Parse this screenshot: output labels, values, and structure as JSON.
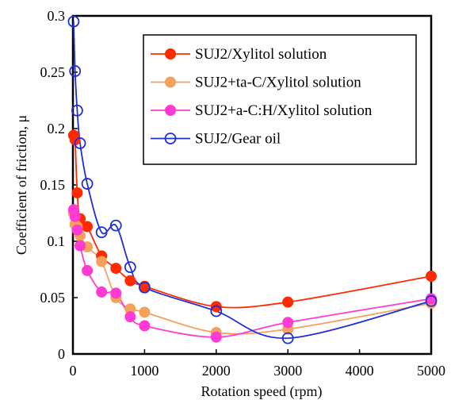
{
  "chart_data": {
    "type": "line",
    "xlabel": "Rotation speed (rpm)",
    "ylabel": "Coefficient of friction, μ",
    "xlim": [
      0,
      5000
    ],
    "ylim": [
      0,
      0.3
    ],
    "x_ticks": [
      0,
      1000,
      2000,
      3000,
      4000,
      5000
    ],
    "y_ticks": [
      0,
      0.05,
      0.1,
      0.15,
      0.2,
      0.25,
      0.3
    ],
    "x_tick_labels": [
      "0",
      "1000",
      "2000",
      "3000",
      "4000",
      "5000"
    ],
    "y_tick_labels": [
      "0",
      "0.05",
      "0.1",
      "0.15",
      "0.2",
      "0.25",
      "0.3"
    ],
    "grid": false,
    "legend_position": "top-right",
    "series": [
      {
        "name": "SUJ2/Xylitol solution",
        "color": "#ff2a00",
        "marker": "filled-circle",
        "x": [
          10,
          30,
          60,
          100,
          200,
          400,
          600,
          800,
          1000,
          2000,
          3000,
          5000
        ],
        "y": [
          0.194,
          0.19,
          0.143,
          0.12,
          0.113,
          0.087,
          0.076,
          0.065,
          0.06,
          0.042,
          0.046,
          0.069
        ]
      },
      {
        "name": "SUJ2+ta-C/Xylitol solution",
        "color": "#f4a15a",
        "marker": "filled-circle",
        "x": [
          10,
          30,
          60,
          100,
          200,
          400,
          600,
          800,
          1000,
          2000,
          3000,
          5000
        ],
        "y": [
          0.125,
          0.115,
          0.113,
          0.105,
          0.095,
          0.082,
          0.05,
          0.04,
          0.037,
          0.019,
          0.022,
          0.045
        ]
      },
      {
        "name": "SUJ2+a-C:H/Xylitol solution",
        "color": "#ff3bd2",
        "marker": "filled-circle",
        "x": [
          10,
          30,
          60,
          100,
          200,
          400,
          600,
          800,
          1000,
          2000,
          3000,
          5000
        ],
        "y": [
          0.128,
          0.122,
          0.11,
          0.096,
          0.074,
          0.055,
          0.054,
          0.033,
          0.025,
          0.015,
          0.028,
          0.049
        ]
      },
      {
        "name": "SUJ2/Gear oil",
        "color": "#1f2fd6",
        "marker": "open-circle",
        "x": [
          10,
          30,
          60,
          100,
          200,
          400,
          600,
          800,
          1000,
          2000,
          3000,
          5000
        ],
        "y": [
          0.295,
          0.251,
          0.216,
          0.187,
          0.151,
          0.108,
          0.114,
          0.077,
          0.059,
          0.038,
          0.014,
          0.047
        ]
      }
    ]
  }
}
